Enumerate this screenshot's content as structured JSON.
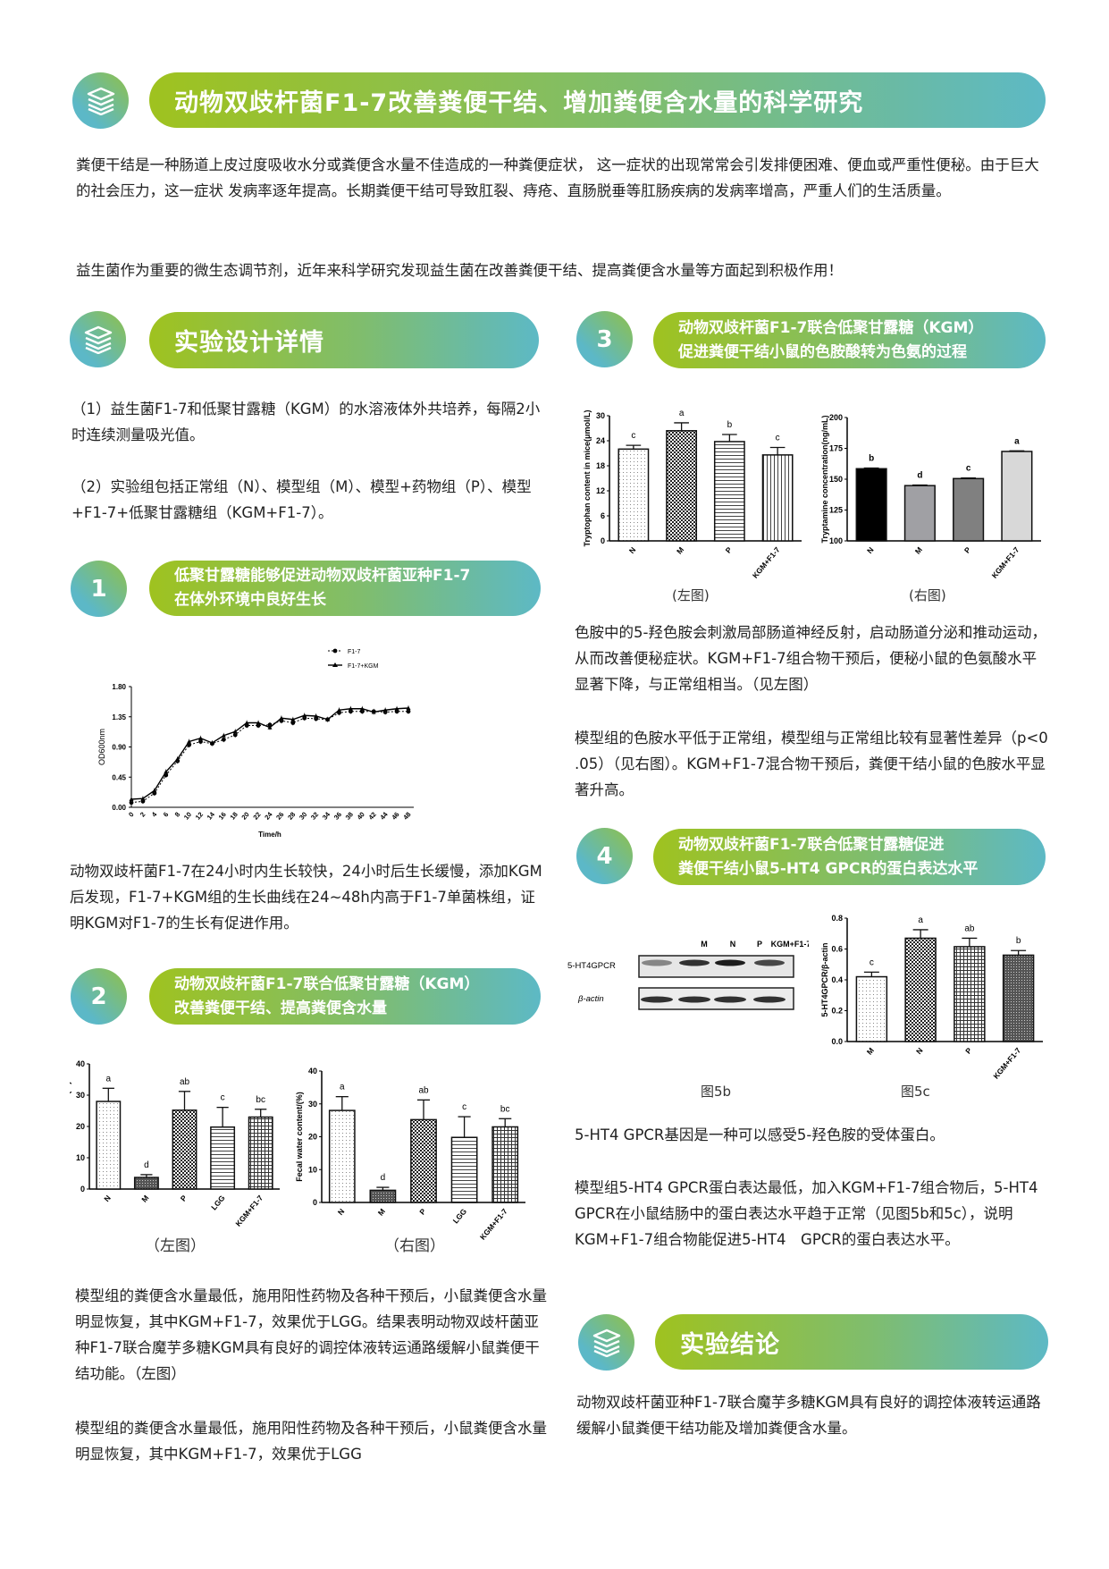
{
  "title": "动物双歧杆菌F1-7改善粪便干结、增加粪便含水量的科学研究",
  "intro": [
    "粪便干结是一种肠道上皮过度吸收水分或粪便含水量不佳造成的一种粪便症状，  这一症状的出现常常会引发排便困难、便血或严重性便秘。由于巨大的社会压力，这一症状 发病率逐年提高。长期粪便干结可导致肛裂、痔疮、直肠脱垂等肛肠疾病的发病率增高，严重人们的生活质量。",
    "益生菌作为重要的微生态调节剂，近年来科学研究发现益生菌在改善粪便干结、提高粪便含水量等方面起到积极作用！"
  ],
  "design": {
    "title": "实验设计详情",
    "items": [
      "（1）益生菌F1-7和低聚甘露糖（KGM）的水溶液体外共培养，每隔2小时连续测量吸光值。",
      "（2）实验组包括正常组（N）、模型组（M）、模型+药物组（P）、模型+F1-7+低聚甘露糖组（KGM+F1-7）。"
    ]
  },
  "section1": {
    "number": "1",
    "title_lines": [
      "低聚甘露糖能够促进动物双歧杆菌亚种F1-7",
      "在体外环境中良好生长"
    ],
    "text": "动物双歧杆菌F1-7在24小时内生长较快，24小时后生长缓慢，添加KGM后发现，F1-7+KGM组的生长曲线在24~48h内高于F1-7单菌株组，证明KGM对F1-7的生长有促进作用。"
  },
  "section2": {
    "number": "2",
    "title_lines": [
      "动物双歧杆菌F1-7联合低聚甘露糖（KGM）",
      "改善粪便干结、提高粪便含水量"
    ],
    "captions": [
      "（左图）",
      "（右图）"
    ],
    "text1": "模型组的粪便含水量最低，施用阳性药物及各种干预后，小鼠粪便含水量明显恢复，其中KGM+F1-7，效果优于LGG。结果表明动物双歧杆菌亚种F1-7联合魔芋多糖KGM具有良好的调控体液转运通路缓解小鼠粪便干结功能。（左图）",
    "text2": "模型组的粪便含水量最低，施用阳性药物及各种干预后，小鼠粪便含水量明显恢复，其中KGM+F1-7，效果优于LGG"
  },
  "section3": {
    "number": "3",
    "title_lines": [
      "动物双歧杆菌F1-7联合低聚甘露糖（KGM）",
      "促进粪便干结小鼠的色胺酸转为色氨的过程"
    ],
    "captions": [
      "(左图)",
      "(右图)"
    ],
    "text1": "色胺中的5-羟色胺会刺激局部肠道神经反射，启动肠道分泌和推动运动，从而改善便秘症状。KGM+F1-7组合物干预后，便秘小鼠的色氨酸水平显著下降，与正常组相当。（见左图）",
    "text2": "模型组的色胺水平低于正常组，模型组与正常组比较有显著性差异（p<0 .05）（见右图）。KGM+F1-7混合物干预后，粪便干结小鼠的色胺水平显著升高。"
  },
  "section4": {
    "number": "4",
    "title_lines": [
      "动物双歧杆菌F1-7联合低聚甘露糖促进",
      "粪便干结小鼠5-HT4 GPCR的蛋白表达水平"
    ],
    "blot": {
      "lanes": [
        "M",
        "N",
        "P",
        "KGM+F1-7"
      ],
      "rows": [
        "5-HT4GPCR",
        "β-actin"
      ],
      "gpcr_intensity": [
        0.45,
        0.85,
        0.95,
        0.75
      ]
    },
    "captions": [
      "图5b",
      "图5c"
    ],
    "text1": "5-HT4 GPCR基因是一种可以感受5-羟色胺的受体蛋白。",
    "text2": "模型组5-HT4 GPCR蛋白表达最低，加入KGM+F1-7组合物后，5-HT4　GPCR在小鼠结肠中的蛋白表达水平趋于正常（见图5b和5c），说明KGM+F1-7组合物能促进5-HT4　GPCR的蛋白表达水平。"
  },
  "conclusion": {
    "title": "实验结论",
    "text": "动物双歧杆菌亚种F1-7联合魔芋多糖KGM具有良好的调控体液转运通路缓解小鼠粪便干结功能及增加粪便含水量。"
  },
  "colors": {
    "gradient_start": "#9fc21f",
    "gradient_end": "#5db9c5",
    "text": "#222222"
  },
  "icons": {
    "header": "stacked-books-icon"
  },
  "chart_data": [
    {
      "id": "growth",
      "type": "line",
      "xlabel": "Time/h",
      "ylabel": "OD600nm",
      "ylim": [
        0,
        1.8
      ],
      "yticks": [
        "0.00",
        "0.45",
        "0.90",
        "1.35",
        "1.80"
      ],
      "x": [
        0,
        2,
        4,
        6,
        8,
        10,
        12,
        14,
        16,
        18,
        20,
        22,
        24,
        26,
        28,
        30,
        32,
        34,
        36,
        38,
        40,
        42,
        44,
        46,
        48
      ],
      "legend": "top-right",
      "series": [
        {
          "name": "F1-7",
          "values": [
            0.07,
            0.09,
            0.21,
            0.48,
            0.69,
            0.93,
            0.98,
            0.95,
            1.01,
            1.08,
            1.22,
            1.22,
            1.23,
            1.29,
            1.26,
            1.33,
            1.32,
            1.31,
            1.41,
            1.43,
            1.43,
            1.43,
            1.42,
            1.43,
            1.43
          ]
        },
        {
          "name": "F1-7+KGM",
          "values": [
            0.12,
            0.13,
            0.25,
            0.53,
            0.72,
            0.98,
            1.03,
            0.96,
            1.07,
            1.13,
            1.26,
            1.26,
            1.19,
            1.33,
            1.31,
            1.37,
            1.36,
            1.31,
            1.45,
            1.47,
            1.47,
            1.42,
            1.45,
            1.47,
            1.48
          ]
        }
      ]
    },
    {
      "id": "fecal-left",
      "type": "bar",
      "ylabel": "Fecal water content/(%)",
      "ylim": [
        0,
        40
      ],
      "yticks": [
        "0",
        "10",
        "20",
        "30",
        "40"
      ],
      "categories": [
        "N",
        "M",
        "P",
        "LGG",
        "KGM+F1-7"
      ],
      "values": [
        28,
        3.7,
        25.2,
        19.8,
        23
      ],
      "errors": [
        4.2,
        0.9,
        6,
        6.3,
        2.5
      ],
      "letters": [
        "a",
        "d",
        "ab",
        "c",
        "bc"
      ]
    },
    {
      "id": "fecal-right",
      "type": "bar",
      "ylabel": "Fecal water content/(%)",
      "ylim": [
        0,
        40
      ],
      "yticks": [
        "0",
        "10",
        "20",
        "30",
        "40"
      ],
      "categories": [
        "N",
        "M",
        "P",
        "LGG",
        "KGM+F1-7"
      ],
      "values": [
        28,
        3.7,
        25.2,
        19.8,
        23
      ],
      "errors": [
        4.2,
        0.9,
        6,
        6.3,
        2.5
      ],
      "letters": [
        "a",
        "d",
        "ab",
        "c",
        "bc"
      ]
    },
    {
      "id": "tryptophan",
      "type": "bar",
      "ylabel": "Tryptophan content in mice(μmol/L)",
      "ylim": [
        0,
        30
      ],
      "yticks": [
        "0",
        "6",
        "12",
        "18",
        "24",
        "30"
      ],
      "categories": [
        "N",
        "M",
        "P",
        "KGM+F1-7"
      ],
      "values": [
        22,
        26.4,
        23.8,
        20.6
      ],
      "errors": [
        0.9,
        1.9,
        1.7,
        1.8
      ],
      "letters": [
        "c",
        "a",
        "b",
        "c"
      ]
    },
    {
      "id": "tryptamine",
      "type": "bar",
      "ylabel": "Tryptamine concentration(ng/mL)",
      "ylim": [
        100,
        200
      ],
      "yticks": [
        "100",
        "125",
        "150",
        "175",
        "200"
      ],
      "categories": [
        "N",
        "M",
        "P",
        "KGM+F1-7"
      ],
      "values": [
        158.5,
        144.8,
        150.5,
        172.5
      ],
      "errors": [
        0.5,
        0.5,
        0.5,
        0.5
      ],
      "letters": [
        "b",
        "d",
        "c",
        "a"
      ]
    },
    {
      "id": "gpcr",
      "type": "bar",
      "ylabel": "5-HT4GPCR/β-actin",
      "ylim": [
        0,
        0.8
      ],
      "yticks": [
        "0.0",
        "0.2",
        "0.4",
        "0.6",
        "0.8"
      ],
      "categories": [
        "M",
        "N",
        "P",
        "KGM+F1-7"
      ],
      "values": [
        0.42,
        0.67,
        0.615,
        0.56
      ],
      "errors": [
        0.03,
        0.055,
        0.055,
        0.03
      ],
      "letters": [
        "c",
        "a",
        "ab",
        "b"
      ]
    }
  ]
}
